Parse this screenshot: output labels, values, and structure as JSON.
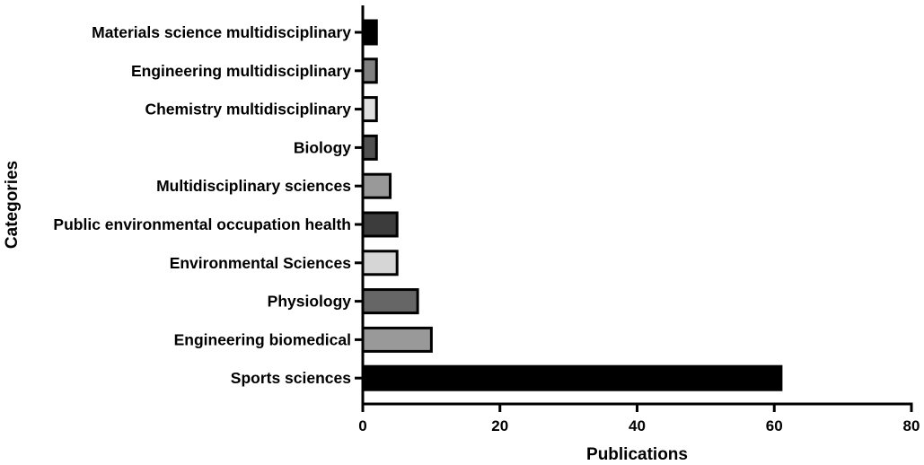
{
  "chart_data": {
    "type": "bar",
    "orientation": "horizontal",
    "xlabel": "Publications",
    "ylabel": "Categories",
    "xlim": [
      0,
      80
    ],
    "xticks": [
      0,
      20,
      40,
      60,
      80
    ],
    "grid": false,
    "categories": [
      "Materials science multidisciplinary",
      "Engineering multidisciplinary",
      "Chemistry multidisciplinary",
      "Biology",
      "Multidisciplinary sciences",
      "Public environmental occupation health",
      "Environmental Sciences",
      "Physiology",
      "Engineering biomedical",
      "Sports sciences"
    ],
    "values": [
      2,
      2,
      2,
      2,
      4,
      5,
      5,
      8,
      10,
      61
    ],
    "bar_colors": [
      "#000000",
      "#808080",
      "#e0e0e0",
      "#505050",
      "#999999",
      "#3c3c3c",
      "#d6d6d6",
      "#666666",
      "#999999",
      "#000000"
    ]
  }
}
